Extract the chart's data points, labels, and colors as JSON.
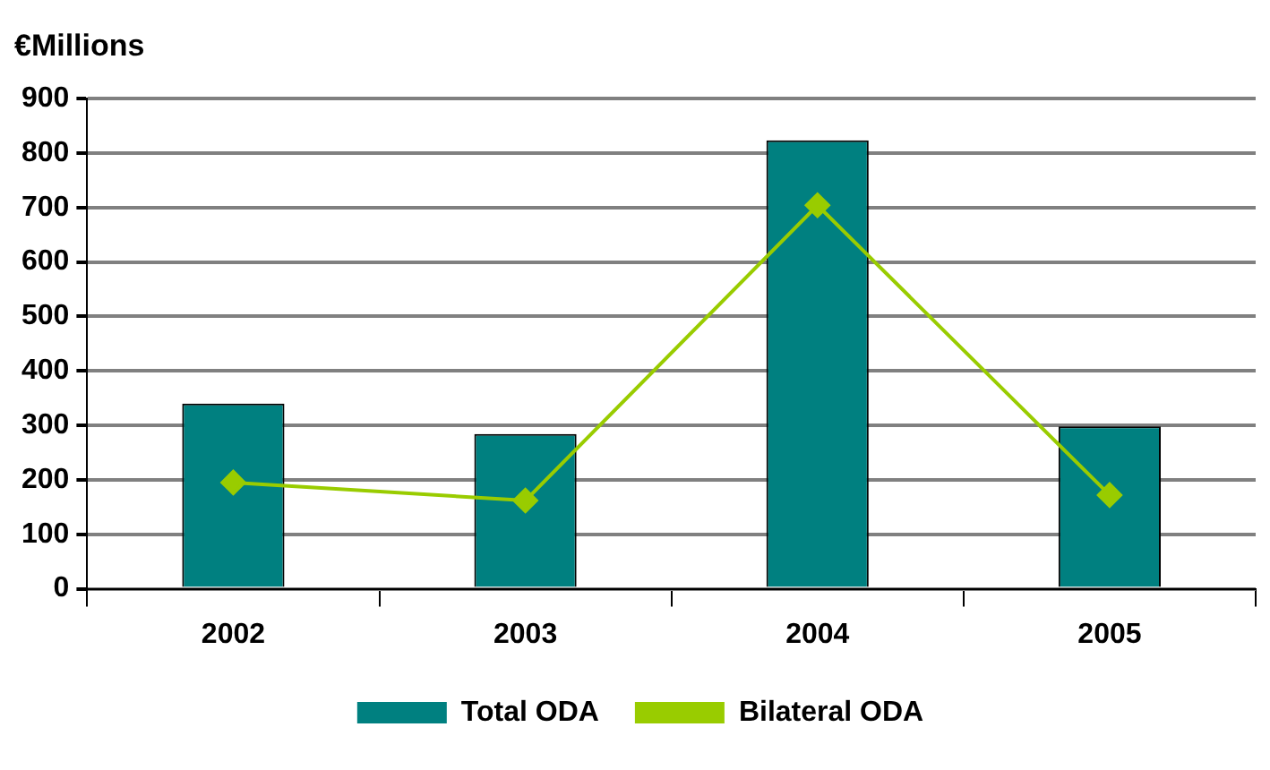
{
  "chart_data": {
    "type": "bar",
    "title": "€Millions",
    "categories": [
      "2002",
      "2003",
      "2004",
      "2005"
    ],
    "series": [
      {
        "name": "Total ODA",
        "color": "#008080",
        "values": [
          340,
          284,
          823,
          298
        ]
      },
      {
        "name": "Bilateral ODA",
        "type": "line",
        "color": "#99cc00",
        "values": [
          195,
          162,
          704,
          172
        ]
      }
    ],
    "ylim": [
      0,
      900
    ],
    "yticks": [
      0,
      100,
      200,
      300,
      400,
      500,
      600,
      700,
      800,
      900
    ],
    "grid": "y",
    "legend": "bottom",
    "marker": "diamond"
  }
}
